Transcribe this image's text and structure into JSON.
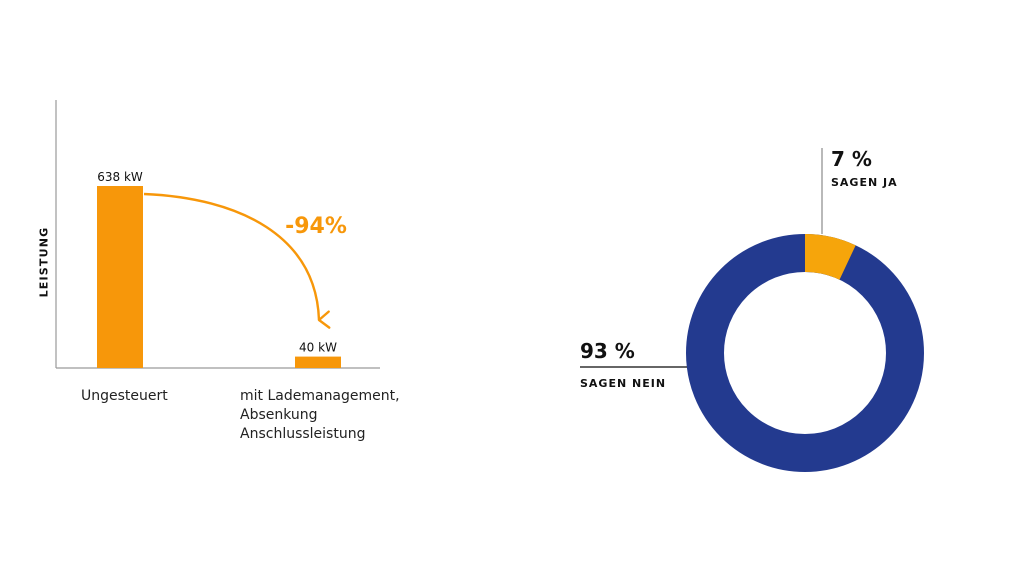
{
  "colors": {
    "accent": "#f7970a",
    "donut_blue": "#233a8f",
    "donut_yellow": "#f6a50b",
    "axis": "#9a9a9a",
    "text": "#1a1a1a"
  },
  "chart_data": [
    {
      "type": "bar",
      "ylabel": "LEISTUNG",
      "categories": [
        [
          "Ungesteuert"
        ],
        [
          "mit Lademanagement,",
          "Absenkung",
          "Anschlussleistung"
        ]
      ],
      "values": [
        638,
        40
      ],
      "value_labels": [
        "638 kW",
        "40 kW"
      ],
      "unit": "kW",
      "annotation": "-94%",
      "ylim": [
        0,
        700
      ],
      "grid": false
    },
    {
      "type": "pie",
      "style": "donut",
      "slices": [
        {
          "value": 7,
          "percent_label": "7 %",
          "label": "SAGEN JA",
          "color": "#f6a50b"
        },
        {
          "value": 93,
          "percent_label": "93 %",
          "label": "SAGEN NEIN",
          "color": "#233a8f"
        }
      ]
    }
  ]
}
